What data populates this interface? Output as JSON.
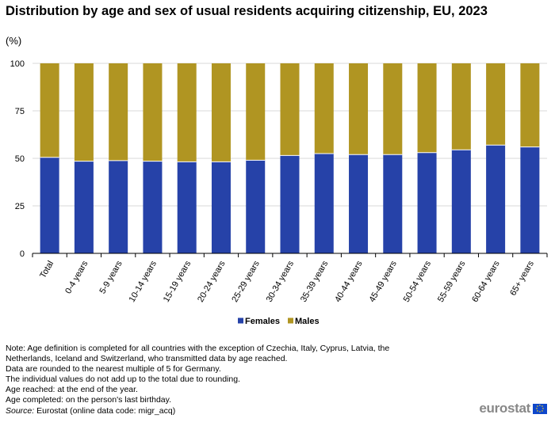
{
  "title": "Distribution by age and sex of usual residents acquiring citizenship, EU, 2023",
  "unit_label": "(%)",
  "colors": {
    "females": "#2642a8",
    "males": "#b09522",
    "grid": "#d9d9d9",
    "axis": "#000000"
  },
  "chart_data": {
    "type": "bar",
    "stacked": true,
    "title": "Distribution by age and sex of usual residents acquiring citizenship, EU, 2023",
    "xlabel": "",
    "ylabel": "(%)",
    "ylim": [
      0,
      100
    ],
    "yticks": [
      0,
      25,
      50,
      75,
      100
    ],
    "grid": true,
    "legend_position": "bottom-center",
    "categories": [
      "Total",
      "0-4 years",
      "5-9 years",
      "10-14 years",
      "15-19 years",
      "20-24 years",
      "25-29 years",
      "30-34 years",
      "35-39 years",
      "40-44 years",
      "45-49 years",
      "50-54 years",
      "55-59 years",
      "60-64 years",
      "65+ years"
    ],
    "series": [
      {
        "name": "Females",
        "values": [
          50.5,
          48.5,
          48.8,
          48.5,
          48.2,
          48.2,
          49.0,
          51.5,
          52.5,
          52.0,
          52.0,
          53.0,
          54.5,
          57.0,
          56.0
        ]
      },
      {
        "name": "Males",
        "values": [
          49.5,
          51.5,
          51.2,
          51.5,
          51.8,
          51.8,
          51.0,
          48.5,
          47.5,
          48.0,
          48.0,
          47.0,
          45.5,
          43.0,
          44.0
        ]
      }
    ]
  },
  "notes": [
    "Note: Age definition is completed for all countries with the exception of Czechia, Italy,  Cyprus, Latvia, the",
    "Netherlands, Iceland and Switzerland,  who transmitted data by age reached.",
    "Data are rounded to the nearest multiple  of 5 for Germany.",
    "The individual values  do not add up to the total due to rounding.",
    "Age reached: at the end of the year.",
    "Age completed: on the person's last birthday."
  ],
  "source": {
    "label": "Source:",
    "text": " Eurostat (online data code: migr_acq)"
  },
  "logo": {
    "text": "eurostat"
  }
}
